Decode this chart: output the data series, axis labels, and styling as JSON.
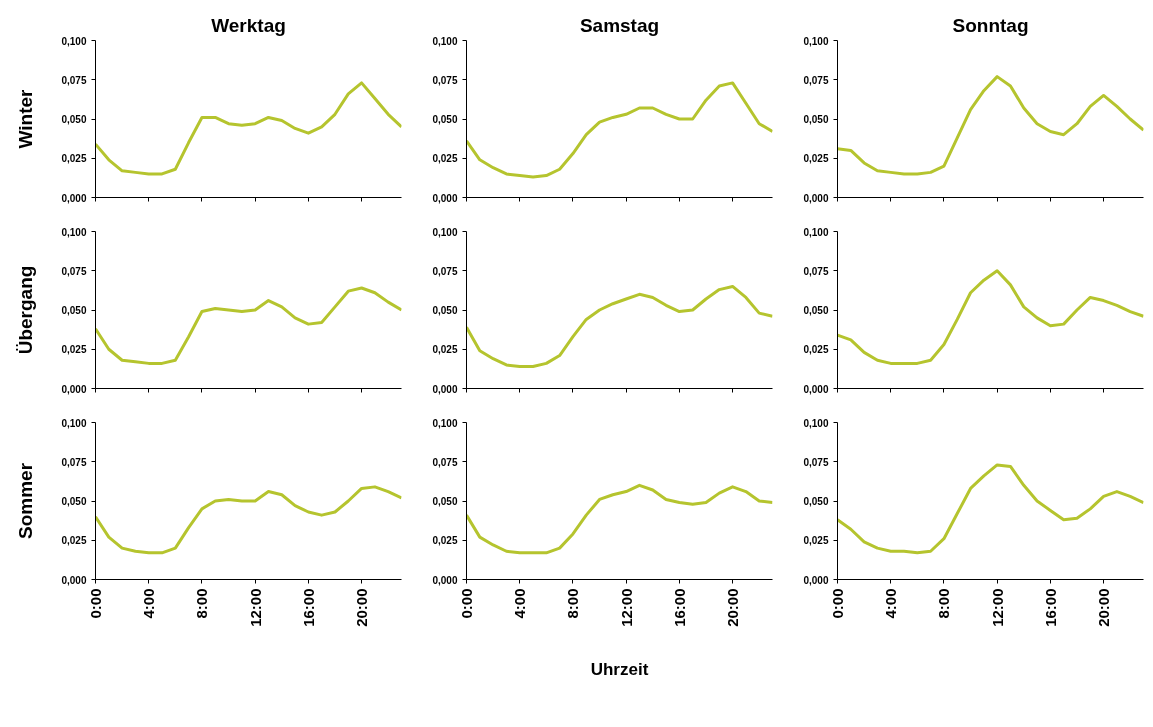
{
  "chart_data": [
    {
      "type": "line",
      "title": "Werktag",
      "ylabel": "Winter",
      "color": "#b5c42e",
      "tick_labels": "y",
      "grid": false,
      "x": [
        0,
        1,
        2,
        3,
        4,
        5,
        6,
        7,
        8,
        9,
        10,
        11,
        12,
        13,
        14,
        15,
        16,
        17,
        18,
        19,
        20,
        21,
        22,
        23
      ],
      "values": [
        0.034,
        0.024,
        0.017,
        0.016,
        0.015,
        0.015,
        0.018,
        0.035,
        0.051,
        0.051,
        0.047,
        0.046,
        0.047,
        0.051,
        0.049,
        0.044,
        0.041,
        0.045,
        0.053,
        0.066,
        0.073,
        0.063,
        0.053,
        0.045
      ],
      "xlim": [
        0,
        23
      ],
      "xticks": [
        {
          "value": 0,
          "label": null
        },
        {
          "value": 4,
          "label": null
        },
        {
          "value": 8,
          "label": null
        },
        {
          "value": 12,
          "label": null
        },
        {
          "value": 16,
          "label": null
        },
        {
          "value": 20,
          "label": null
        }
      ],
      "ylim": [
        0,
        0.1
      ],
      "yticks": [
        {
          "value": 0,
          "label": "0,000"
        },
        {
          "value": 0.025,
          "label": "0,025"
        },
        {
          "value": 0.05,
          "label": "0,050"
        },
        {
          "value": 0.075,
          "label": "0,075"
        },
        {
          "value": 0.1,
          "label": "0,100"
        }
      ]
    },
    {
      "type": "line",
      "title": "Samstag",
      "color": "#b5c42e",
      "tick_labels": "y",
      "grid": false,
      "x": [
        0,
        1,
        2,
        3,
        4,
        5,
        6,
        7,
        8,
        9,
        10,
        11,
        12,
        13,
        14,
        15,
        16,
        17,
        18,
        19,
        20,
        21,
        22,
        23
      ],
      "values": [
        0.036,
        0.024,
        0.019,
        0.015,
        0.014,
        0.013,
        0.014,
        0.018,
        0.028,
        0.04,
        0.048,
        0.051,
        0.053,
        0.057,
        0.057,
        0.053,
        0.05,
        0.05,
        0.062,
        0.071,
        0.073,
        0.06,
        0.047,
        0.042
      ],
      "xlim": [
        0,
        23
      ],
      "xticks": [
        {
          "value": 0,
          "label": null
        },
        {
          "value": 4,
          "label": null
        },
        {
          "value": 8,
          "label": null
        },
        {
          "value": 12,
          "label": null
        },
        {
          "value": 16,
          "label": null
        },
        {
          "value": 20,
          "label": null
        }
      ],
      "ylim": [
        0,
        0.1
      ],
      "yticks": [
        {
          "value": 0,
          "label": "0,000"
        },
        {
          "value": 0.025,
          "label": "0,025"
        },
        {
          "value": 0.05,
          "label": "0,050"
        },
        {
          "value": 0.075,
          "label": "0,075"
        },
        {
          "value": 0.1,
          "label": "0,100"
        }
      ]
    },
    {
      "type": "line",
      "title": "Sonntag",
      "color": "#b5c42e",
      "tick_labels": "y",
      "grid": false,
      "x": [
        0,
        1,
        2,
        3,
        4,
        5,
        6,
        7,
        8,
        9,
        10,
        11,
        12,
        13,
        14,
        15,
        16,
        17,
        18,
        19,
        20,
        21,
        22,
        23
      ],
      "values": [
        0.031,
        0.03,
        0.022,
        0.017,
        0.016,
        0.015,
        0.015,
        0.016,
        0.02,
        0.038,
        0.056,
        0.068,
        0.077,
        0.071,
        0.057,
        0.047,
        0.042,
        0.04,
        0.047,
        0.058,
        0.065,
        0.058,
        0.05,
        0.043
      ],
      "xlim": [
        0,
        23
      ],
      "xticks": [
        {
          "value": 0,
          "label": null
        },
        {
          "value": 4,
          "label": null
        },
        {
          "value": 8,
          "label": null
        },
        {
          "value": 12,
          "label": null
        },
        {
          "value": 16,
          "label": null
        },
        {
          "value": 20,
          "label": null
        }
      ],
      "ylim": [
        0,
        0.1
      ],
      "yticks": [
        {
          "value": 0,
          "label": "0,000"
        },
        {
          "value": 0.025,
          "label": "0,025"
        },
        {
          "value": 0.05,
          "label": "0,050"
        },
        {
          "value": 0.075,
          "label": "0,075"
        },
        {
          "value": 0.1,
          "label": "0,100"
        }
      ]
    },
    {
      "type": "line",
      "ylabel": "Übergang",
      "color": "#b5c42e",
      "tick_labels": "y",
      "grid": false,
      "x": [
        0,
        1,
        2,
        3,
        4,
        5,
        6,
        7,
        8,
        9,
        10,
        11,
        12,
        13,
        14,
        15,
        16,
        17,
        18,
        19,
        20,
        21,
        22,
        23
      ],
      "values": [
        0.038,
        0.025,
        0.018,
        0.017,
        0.016,
        0.016,
        0.018,
        0.033,
        0.049,
        0.051,
        0.05,
        0.049,
        0.05,
        0.056,
        0.052,
        0.045,
        0.041,
        0.042,
        0.052,
        0.062,
        0.064,
        0.061,
        0.055,
        0.05
      ],
      "xlim": [
        0,
        23
      ],
      "xticks": [
        {
          "value": 0,
          "label": null
        },
        {
          "value": 4,
          "label": null
        },
        {
          "value": 8,
          "label": null
        },
        {
          "value": 12,
          "label": null
        },
        {
          "value": 16,
          "label": null
        },
        {
          "value": 20,
          "label": null
        }
      ],
      "ylim": [
        0,
        0.1
      ],
      "yticks": [
        {
          "value": 0,
          "label": "0,000"
        },
        {
          "value": 0.025,
          "label": "0,025"
        },
        {
          "value": 0.05,
          "label": "0,050"
        },
        {
          "value": 0.075,
          "label": "0,075"
        },
        {
          "value": 0.1,
          "label": "0,100"
        }
      ]
    },
    {
      "type": "line",
      "color": "#b5c42e",
      "tick_labels": "y",
      "grid": false,
      "x": [
        0,
        1,
        2,
        3,
        4,
        5,
        6,
        7,
        8,
        9,
        10,
        11,
        12,
        13,
        14,
        15,
        16,
        17,
        18,
        19,
        20,
        21,
        22,
        23
      ],
      "values": [
        0.039,
        0.024,
        0.019,
        0.015,
        0.014,
        0.014,
        0.016,
        0.021,
        0.033,
        0.044,
        0.05,
        0.054,
        0.057,
        0.06,
        0.058,
        0.053,
        0.049,
        0.05,
        0.057,
        0.063,
        0.065,
        0.058,
        0.048,
        0.046
      ],
      "xlim": [
        0,
        23
      ],
      "xticks": [
        {
          "value": 0,
          "label": null
        },
        {
          "value": 4,
          "label": null
        },
        {
          "value": 8,
          "label": null
        },
        {
          "value": 12,
          "label": null
        },
        {
          "value": 16,
          "label": null
        },
        {
          "value": 20,
          "label": null
        }
      ],
      "ylim": [
        0,
        0.1
      ],
      "yticks": [
        {
          "value": 0,
          "label": "0,000"
        },
        {
          "value": 0.025,
          "label": "0,025"
        },
        {
          "value": 0.05,
          "label": "0,050"
        },
        {
          "value": 0.075,
          "label": "0,075"
        },
        {
          "value": 0.1,
          "label": "0,100"
        }
      ]
    },
    {
      "type": "line",
      "color": "#b5c42e",
      "tick_labels": "y",
      "grid": false,
      "x": [
        0,
        1,
        2,
        3,
        4,
        5,
        6,
        7,
        8,
        9,
        10,
        11,
        12,
        13,
        14,
        15,
        16,
        17,
        18,
        19,
        20,
        21,
        22,
        23
      ],
      "values": [
        0.034,
        0.031,
        0.023,
        0.018,
        0.016,
        0.016,
        0.016,
        0.018,
        0.028,
        0.044,
        0.061,
        0.069,
        0.075,
        0.066,
        0.052,
        0.045,
        0.04,
        0.041,
        0.05,
        0.058,
        0.056,
        0.053,
        0.049,
        0.046
      ],
      "xlim": [
        0,
        23
      ],
      "xticks": [
        {
          "value": 0,
          "label": null
        },
        {
          "value": 4,
          "label": null
        },
        {
          "value": 8,
          "label": null
        },
        {
          "value": 12,
          "label": null
        },
        {
          "value": 16,
          "label": null
        },
        {
          "value": 20,
          "label": null
        }
      ],
      "ylim": [
        0,
        0.1
      ],
      "yticks": [
        {
          "value": 0,
          "label": "0,000"
        },
        {
          "value": 0.025,
          "label": "0,025"
        },
        {
          "value": 0.05,
          "label": "0,050"
        },
        {
          "value": 0.075,
          "label": "0,075"
        },
        {
          "value": 0.1,
          "label": "0,100"
        }
      ]
    },
    {
      "type": "line",
      "ylabel": "Sommer",
      "color": "#b5c42e",
      "grid": false,
      "x": [
        0,
        1,
        2,
        3,
        4,
        5,
        6,
        7,
        8,
        9,
        10,
        11,
        12,
        13,
        14,
        15,
        16,
        17,
        18,
        19,
        20,
        21,
        22,
        23
      ],
      "values": [
        0.04,
        0.027,
        0.02,
        0.018,
        0.017,
        0.017,
        0.02,
        0.033,
        0.045,
        0.05,
        0.051,
        0.05,
        0.05,
        0.056,
        0.054,
        0.047,
        0.043,
        0.041,
        0.043,
        0.05,
        0.058,
        0.059,
        0.056,
        0.052
      ],
      "xlim": [
        0,
        23
      ],
      "xticks": [
        {
          "value": 0,
          "label": "0:00"
        },
        {
          "value": 4,
          "label": "4:00"
        },
        {
          "value": 8,
          "label": "8:00"
        },
        {
          "value": 12,
          "label": "12:00"
        },
        {
          "value": 16,
          "label": "16:00"
        },
        {
          "value": 20,
          "label": "20:00"
        }
      ],
      "ylim": [
        0,
        0.1
      ],
      "yticks": [
        {
          "value": 0,
          "label": "0,000"
        },
        {
          "value": 0.025,
          "label": "0,025"
        },
        {
          "value": 0.05,
          "label": "0,050"
        },
        {
          "value": 0.075,
          "label": "0,075"
        },
        {
          "value": 0.1,
          "label": "0,100"
        }
      ]
    },
    {
      "type": "line",
      "xlabel": "Uhrzeit",
      "color": "#b5c42e",
      "grid": false,
      "x": [
        0,
        1,
        2,
        3,
        4,
        5,
        6,
        7,
        8,
        9,
        10,
        11,
        12,
        13,
        14,
        15,
        16,
        17,
        18,
        19,
        20,
        21,
        22,
        23
      ],
      "values": [
        0.041,
        0.027,
        0.022,
        0.018,
        0.017,
        0.017,
        0.017,
        0.02,
        0.029,
        0.041,
        0.051,
        0.054,
        0.056,
        0.06,
        0.057,
        0.051,
        0.049,
        0.048,
        0.049,
        0.055,
        0.059,
        0.056,
        0.05,
        0.049
      ],
      "xlim": [
        0,
        23
      ],
      "xticks": [
        {
          "value": 0,
          "label": "0:00"
        },
        {
          "value": 4,
          "label": "4:00"
        },
        {
          "value": 8,
          "label": "8:00"
        },
        {
          "value": 12,
          "label": "12:00"
        },
        {
          "value": 16,
          "label": "16:00"
        },
        {
          "value": 20,
          "label": "20:00"
        }
      ],
      "ylim": [
        0,
        0.1
      ],
      "yticks": [
        {
          "value": 0,
          "label": "0,000"
        },
        {
          "value": 0.025,
          "label": "0,025"
        },
        {
          "value": 0.05,
          "label": "0,050"
        },
        {
          "value": 0.075,
          "label": "0,075"
        },
        {
          "value": 0.1,
          "label": "0,100"
        }
      ]
    },
    {
      "type": "line",
      "color": "#b5c42e",
      "grid": false,
      "x": [
        0,
        1,
        2,
        3,
        4,
        5,
        6,
        7,
        8,
        9,
        10,
        11,
        12,
        13,
        14,
        15,
        16,
        17,
        18,
        19,
        20,
        21,
        22,
        23
      ],
      "values": [
        0.038,
        0.032,
        0.024,
        0.02,
        0.018,
        0.018,
        0.017,
        0.018,
        0.026,
        0.042,
        0.058,
        0.066,
        0.073,
        0.072,
        0.06,
        0.05,
        0.044,
        0.038,
        0.039,
        0.045,
        0.053,
        0.056,
        0.053,
        0.049
      ],
      "xlim": [
        0,
        23
      ],
      "xticks": [
        {
          "value": 0,
          "label": "0:00"
        },
        {
          "value": 4,
          "label": "4:00"
        },
        {
          "value": 8,
          "label": "8:00"
        },
        {
          "value": 12,
          "label": "12:00"
        },
        {
          "value": 16,
          "label": "16:00"
        },
        {
          "value": 20,
          "label": "20:00"
        }
      ],
      "ylim": [
        0,
        0.1
      ],
      "yticks": [
        {
          "value": 0,
          "label": "0,000"
        },
        {
          "value": 0.025,
          "label": "0,025"
        },
        {
          "value": 0.05,
          "label": "0,050"
        },
        {
          "value": 0.075,
          "label": "0,075"
        },
        {
          "value": 0.1,
          "label": "0,100"
        }
      ]
    }
  ]
}
